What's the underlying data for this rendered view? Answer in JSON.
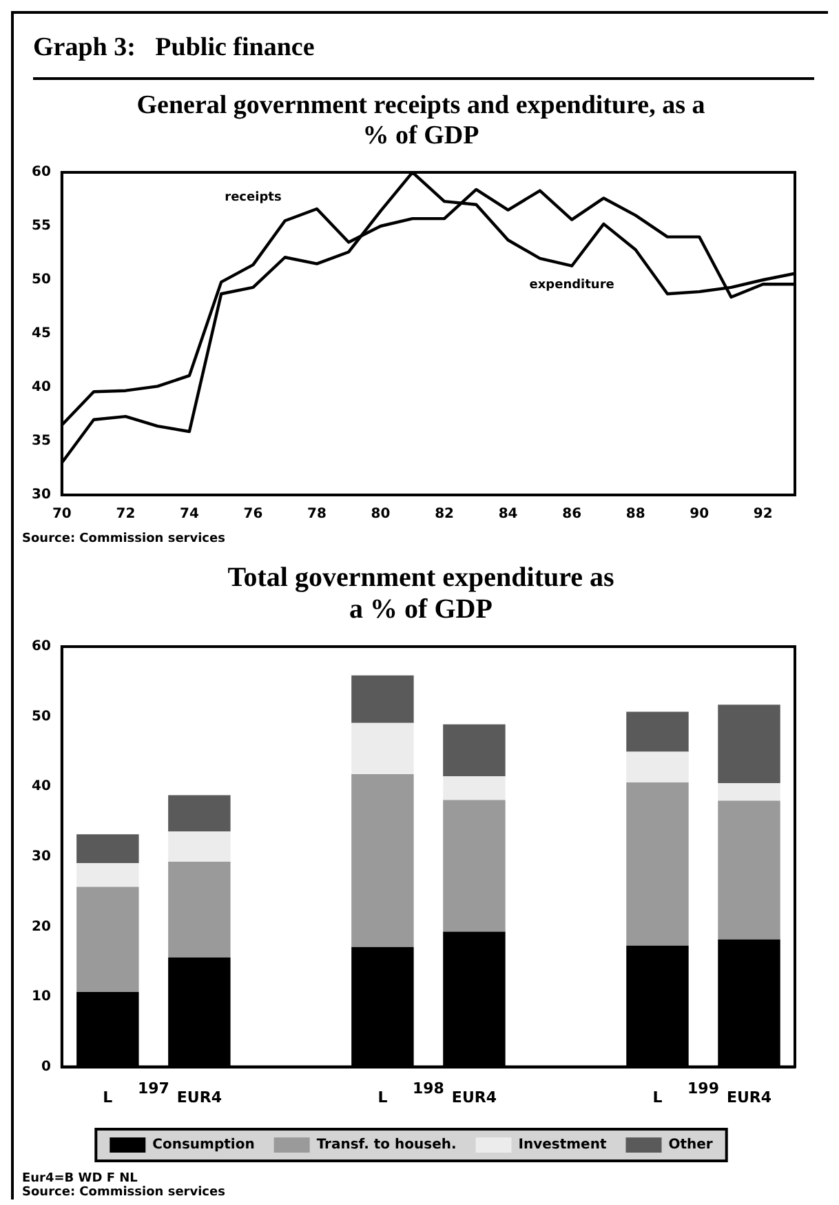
{
  "chart_data": [
    {
      "type": "line",
      "title": "Graph 3:   Public finance",
      "subtitle": "General government receipts and expenditure, as a % of GDP",
      "x": [
        70,
        71,
        72,
        73,
        74,
        75,
        76,
        77,
        78,
        79,
        80,
        81,
        82,
        83,
        84,
        85,
        86,
        87,
        88,
        89,
        90,
        91,
        92,
        93
      ],
      "xlim": [
        70,
        93
      ],
      "xticks": [
        70,
        72,
        74,
        76,
        78,
        80,
        82,
        84,
        86,
        88,
        90,
        92
      ],
      "ylim": [
        30,
        60
      ],
      "yticks": [
        30,
        35,
        40,
        45,
        50,
        55,
        60
      ],
      "grid": false,
      "series": [
        {
          "name": "receipts",
          "color": "#000000",
          "values": [
            36.5,
            39.6,
            39.7,
            40.1,
            41.1,
            49.8,
            51.4,
            55.5,
            56.6,
            53.5,
            55.0,
            55.7,
            55.7,
            58.4,
            56.5,
            58.3,
            55.6,
            57.6,
            56.0,
            54.0,
            54.0,
            48.4,
            49.6,
            49.6
          ]
        },
        {
          "name": "expenditure",
          "color": "#000000",
          "values": [
            33.0,
            37.0,
            37.3,
            36.4,
            35.9,
            48.7,
            49.3,
            52.1,
            51.5,
            52.6,
            56.4,
            60.0,
            57.3,
            57.0,
            53.7,
            52.0,
            51.3,
            55.2,
            52.8,
            48.7,
            48.9,
            49.3,
            50.0,
            50.6
          ]
        }
      ],
      "annotations": [
        "Source: Commission services"
      ]
    },
    {
      "type": "bar",
      "title": "Total government expenditure as a % of GDP",
      "stacked": true,
      "categories": [
        "L",
        "EUR4",
        null,
        "L",
        "EUR4",
        null,
        "L",
        "EUR4"
      ],
      "ylim": [
        0,
        60
      ],
      "yticks": [
        0,
        10,
        20,
        30,
        40,
        50,
        60
      ],
      "grid": false,
      "legend": "bottom",
      "series": [
        {
          "name": "Consumption",
          "color": "#000000",
          "values": [
            10.7,
            15.6,
            null,
            17.1,
            19.3,
            null,
            17.3,
            18.2
          ]
        },
        {
          "name": "Transf. to househ.",
          "color": "#9a9a9a",
          "values": [
            15.0,
            13.7,
            null,
            24.7,
            18.8,
            null,
            23.3,
            19.8
          ]
        },
        {
          "name": "Investment",
          "color": "#ececec",
          "values": [
            3.4,
            4.3,
            null,
            7.3,
            3.4,
            null,
            4.4,
            2.5
          ]
        },
        {
          "name": "Other",
          "color": "#5a5a5a",
          "values": [
            4.1,
            5.2,
            null,
            6.8,
            7.4,
            null,
            5.7,
            11.2
          ]
        }
      ],
      "annotations": [
        "197",
        "198",
        "199",
        "Eur4=B WD F NL",
        "Source: Commission services"
      ]
    }
  ]
}
